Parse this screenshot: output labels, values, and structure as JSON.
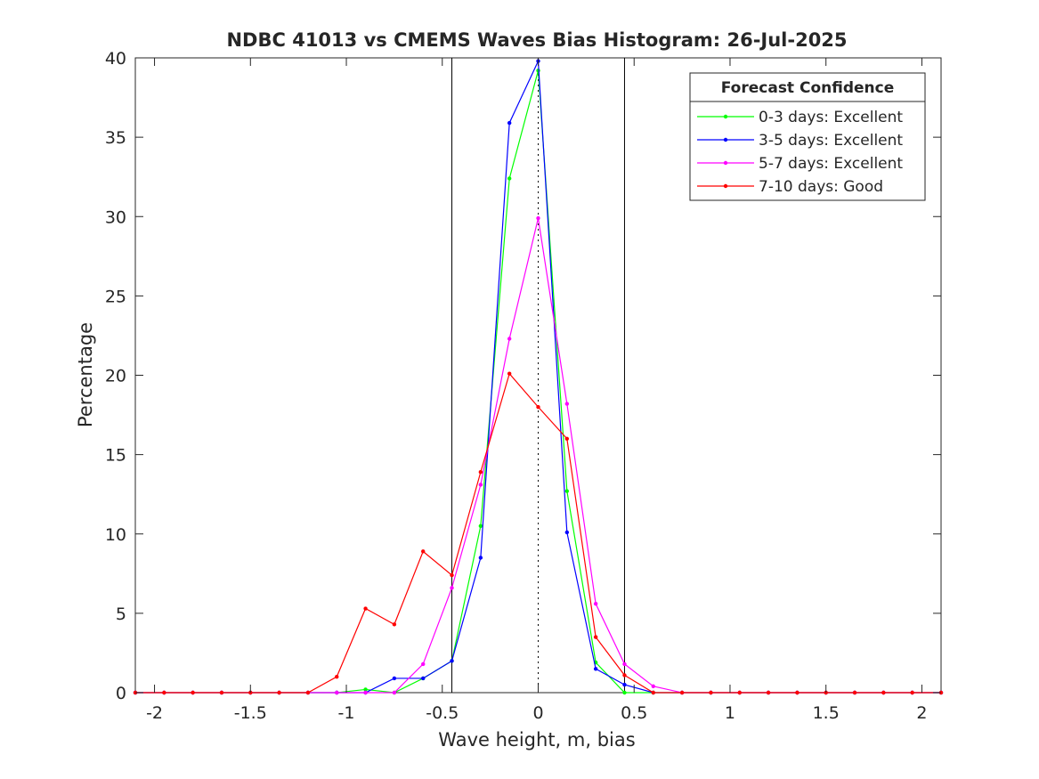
{
  "chart_data": {
    "type": "line",
    "title": "NDBC 41013 vs CMEMS Waves Bias Histogram: 26-Jul-2025",
    "xlabel": "Wave height, m, bias",
    "ylabel": "Percentage",
    "xlim": [
      -2.1,
      2.1
    ],
    "ylim": [
      0,
      40
    ],
    "xticks": [
      -2,
      -1.5,
      -1,
      -0.5,
      0,
      0.5,
      1,
      1.5,
      2
    ],
    "xtick_labels": [
      "-2",
      "-1.5",
      "-1",
      "-0.5",
      "0",
      "0.5",
      "1",
      "1.5",
      "2"
    ],
    "yticks": [
      0,
      5,
      10,
      15,
      20,
      25,
      30,
      35,
      40
    ],
    "ytick_labels": [
      "0",
      "5",
      "10",
      "15",
      "20",
      "25",
      "30",
      "35",
      "40"
    ],
    "vertical_lines": [
      -0.45,
      0.45
    ],
    "zero_line": 0,
    "grid": false,
    "legend": {
      "title": "Forecast Confidence",
      "placement": "top-right"
    },
    "x": [
      -2.1,
      -1.95,
      -1.8,
      -1.65,
      -1.5,
      -1.35,
      -1.2,
      -1.05,
      -0.9,
      -0.75,
      -0.6,
      -0.45,
      -0.3,
      -0.15,
      0,
      0.15,
      0.3,
      0.45,
      0.6,
      0.75,
      0.9,
      1.05,
      1.2,
      1.35,
      1.5,
      1.65,
      1.8,
      1.95,
      2.1
    ],
    "series": [
      {
        "name": "0-3 days: Excellent",
        "color": "#00ff00",
        "values": [
          0,
          0,
          0,
          0,
          0,
          0,
          0,
          0,
          0.2,
          0,
          0.9,
          2.0,
          10.5,
          32.4,
          39.2,
          12.7,
          1.9,
          0,
          0,
          0,
          0,
          0,
          0,
          0,
          0,
          0,
          0,
          0,
          0
        ]
      },
      {
        "name": "3-5 days: Excellent",
        "color": "#0000ff",
        "values": [
          0,
          0,
          0,
          0,
          0,
          0,
          0,
          0,
          0,
          0.9,
          0.9,
          2.0,
          8.5,
          35.9,
          39.8,
          10.1,
          1.5,
          0.5,
          0,
          0,
          0,
          0,
          0,
          0,
          0,
          0,
          0,
          0,
          0
        ]
      },
      {
        "name": "5-7 days: Excellent",
        "color": "#ff00ff",
        "values": [
          0,
          0,
          0,
          0,
          0,
          0,
          0,
          0,
          0,
          0,
          1.8,
          6.6,
          13.1,
          22.3,
          29.9,
          18.2,
          5.6,
          1.8,
          0.4,
          0,
          0,
          0,
          0,
          0,
          0,
          0,
          0,
          0,
          0
        ]
      },
      {
        "name": "7-10 days: Good",
        "color": "#ff0000",
        "values": [
          0,
          0,
          0,
          0,
          0,
          0,
          0,
          1.0,
          5.3,
          4.3,
          8.9,
          7.4,
          13.9,
          20.1,
          18.0,
          16.0,
          3.5,
          1.1,
          0,
          0,
          0,
          0,
          0,
          0,
          0,
          0,
          0,
          0,
          0
        ]
      }
    ]
  }
}
